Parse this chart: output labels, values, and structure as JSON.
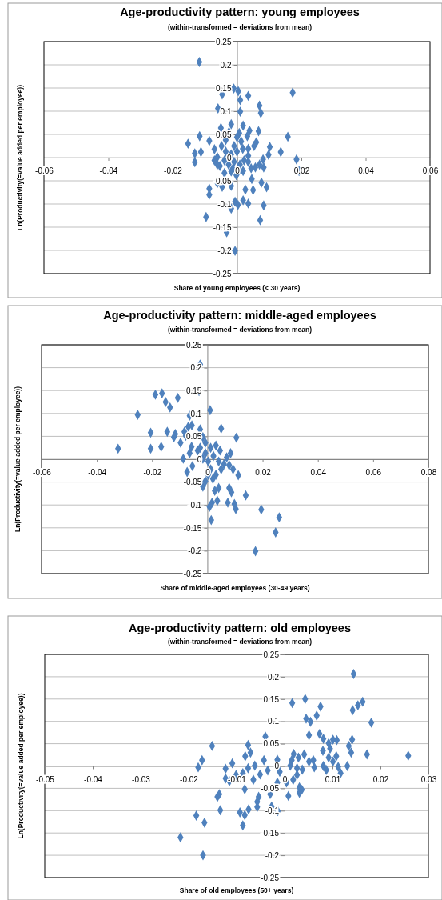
{
  "chart_data": [
    {
      "type": "scatter",
      "title": "Age-productivity pattern: young employees",
      "subtitle": "(within-transformed  = deviations from mean)",
      "xlabel": "Share of young employees (< 30 years)",
      "ylabel": "Ln(Productivity(=value added per employee))",
      "xlim": [
        -0.06,
        0.06
      ],
      "xticks": [
        -0.06,
        -0.04,
        -0.02,
        0,
        0.02,
        0.04,
        0.06
      ],
      "ylim": [
        -0.25,
        0.25
      ],
      "yticks": [
        -0.25,
        -0.2,
        -0.15,
        -0.1,
        -0.05,
        0,
        0.05,
        0.1,
        0.15,
        0.2,
        0.25
      ],
      "grid": "y",
      "marker": "diamond",
      "series": [
        {
          "color": "#4f81bd",
          "x": [
            -0.0117,
            -0.001,
            0.0004,
            0.0035,
            -0.0046,
            0.001,
            0.0173,
            0.007,
            0.0074,
            -0.0059,
            0.001,
            -0.0018,
            0.0019,
            -0.005,
            0.0039,
            0.0067,
            0.0158,
            -0.0116,
            -0.0152,
            -0.0086,
            0.0032,
            0.0007,
            -0.0025,
            0.006,
            0.0102,
            0.0136,
            -0.0131,
            -0.0112,
            -0.0131,
            -0.007,
            -0.0048,
            0.0098,
            0.0081,
            0.0185,
            0.0193,
            0.007,
            0.0083,
            0.0044,
            0.0019,
            0.0046,
            0.0076,
            0.0092,
            0.005,
            0.0026,
            -0.0018,
            -0.0046,
            -0.0086,
            -0.0086,
            -0.0061,
            -0.0002,
            -0.0018,
            -0.0039,
            0.0083,
            0.0035,
            0.0019,
            0.0003,
            -0.0006,
            -0.0018,
            -0.0096,
            0.0072,
            -0.0032,
            -0.0006,
            -0.0061,
            -0.0039,
            -0.0026,
            -0.0009,
            0.0009,
            0.0022,
            0.0035,
            0.0018,
            0,
            -0.0018,
            -0.0035,
            -0.0053,
            -0.0061,
            0.0035,
            0.0053,
            -0.0009,
            0.0013,
            0,
            -0.0035,
            -0.0013,
            0.0004,
            0.0035,
            -0.007,
            0.0057
          ],
          "values": [
            0.206,
            0.149,
            0.143,
            0.133,
            0.136,
            0.124,
            0.14,
            0.112,
            0.096,
            0.106,
            0.099,
            0.072,
            0.069,
            0.064,
            0.058,
            0.057,
            0.045,
            0.046,
            0.03,
            0.036,
            0.046,
            0.053,
            0.055,
            0.033,
            0.023,
            0.012,
            0.009,
            0.012,
            -0.01,
            0.018,
            0.025,
            0.006,
            -0.004,
            -0.004,
            -0.029,
            -0.015,
            -0.021,
            -0.023,
            -0.029,
            -0.046,
            -0.054,
            -0.064,
            -0.07,
            -0.069,
            -0.061,
            -0.063,
            -0.067,
            -0.08,
            -0.055,
            -0.038,
            -0.03,
            -0.033,
            -0.103,
            -0.099,
            -0.092,
            -0.102,
            -0.095,
            -0.11,
            -0.128,
            -0.135,
            -0.161,
            -0.201,
            0.001,
            -0.006,
            -0.015,
            -0.009,
            -0.015,
            -0.006,
            0.004,
            0.019,
            0.013,
            0.007,
            0.013,
            -0.018,
            -0.015,
            0.019,
            0.025,
            0.025,
            0.035,
            0.044,
            0.038,
            -0.024,
            -0.03,
            -0.009,
            -0.006,
            -0.021
          ]
        }
      ]
    },
    {
      "type": "scatter",
      "title": "Age-productivity pattern: middle-aged employees",
      "subtitle": "(within-transformed  = deviations from mean)",
      "xlabel": "Share of middle-aged employees (30-49 years)",
      "ylabel": "Ln(Productivity(=value added per employee))",
      "xlim": [
        -0.06,
        0.08
      ],
      "xticks": [
        -0.06,
        -0.04,
        -0.02,
        0,
        0.02,
        0.04,
        0.06,
        0.08
      ],
      "ylim": [
        -0.25,
        0.25
      ],
      "yticks": [
        -0.25,
        -0.2,
        -0.15,
        -0.1,
        -0.05,
        0,
        0.05,
        0.1,
        0.15,
        0.2,
        0.25
      ],
      "grid": "y",
      "marker": "diamond",
      "series": [
        {
          "color": "#4f81bd",
          "x": [
            -0.0026,
            -0.003,
            -0.0188,
            -0.0164,
            -0.0151,
            -0.0135,
            -0.0107,
            0.001,
            -0.0252,
            -0.0064,
            -0.0069,
            -0.0056,
            -0.0026,
            0.005,
            -0.0205,
            -0.0145,
            -0.0121,
            -0.0116,
            -0.0083,
            -0.0078,
            0.0105,
            -0.0323,
            -0.0205,
            -0.0167,
            -0.0097,
            -0.0057,
            -0.0016,
            -0.0007,
            -0.0035,
            -0.0064,
            -0.0087,
            -0.0054,
            -0.0073,
            0.0084,
            0.0012,
            0.0031,
            0.0046,
            -0.0016,
            0.0003,
            0.0022,
            0.0041,
            0.006,
            0.0079,
            0.0093,
            0.0112,
            0.0012,
            0.0031,
            -0.0007,
            -0.0016,
            0.0027,
            0.0041,
            0.0079,
            0.0087,
            0.0139,
            0.0036,
            0.0017,
            0.0008,
            0.0074,
            0.0098,
            0.0103,
            0.0014,
            0.0195,
            0.026,
            0.0247,
            0.0174,
            -0.0007,
            -0.0026,
            0.005,
            0.007,
            0.0003,
            0.002
          ],
          "values": [
            0.207,
            0.149,
            0.141,
            0.144,
            0.125,
            0.113,
            0.134,
            0.107,
            0.097,
            0.095,
            0.071,
            0.074,
            0.065,
            0.067,
            0.058,
            0.06,
            0.048,
            0.055,
            0.06,
            0.051,
            0.047,
            0.023,
            0.023,
            0.027,
            0.036,
            0.027,
            0.048,
            0.036,
            0.019,
            0.013,
            0.001,
            -0.015,
            -0.028,
            0.013,
            0.025,
            0.03,
            0.019,
            0.001,
            -0.005,
            0.007,
            -0.005,
            -0.011,
            -0.013,
            -0.022,
            -0.035,
            -0.022,
            -0.034,
            -0.048,
            -0.06,
            -0.069,
            -0.063,
            -0.063,
            -0.072,
            -0.079,
            -0.091,
            -0.095,
            -0.104,
            -0.095,
            -0.098,
            -0.109,
            -0.133,
            -0.11,
            -0.127,
            -0.16,
            -0.201,
            0.013,
            0.025,
            -0.022,
            0.004,
            -0.034,
            -0.043
          ]
        }
      ]
    },
    {
      "type": "scatter",
      "title": "Age-productivity pattern: old employees",
      "subtitle": "(within-transformed  = deviations from mean)",
      "xlabel": "Share of old employees (50+ years)",
      "ylabel": "Ln(Productivity(=value added per employee))",
      "xlim": [
        -0.05,
        0.03
      ],
      "xticks": [
        -0.05,
        -0.04,
        -0.03,
        -0.02,
        -0.01,
        0,
        0.01,
        0.02,
        0.03
      ],
      "ylim": [
        -0.25,
        0.25
      ],
      "yticks": [
        -0.25,
        -0.2,
        -0.15,
        -0.1,
        -0.05,
        0,
        0.05,
        0.1,
        0.15,
        0.2,
        0.25
      ],
      "grid": "y",
      "marker": "diamond",
      "series": [
        {
          "color": "#4f81bd",
          "x": [
            0.0144,
            0.0043,
            0.0016,
            0.0075,
            0.0163,
            0.0153,
            0.0142,
            0.0067,
            0.0045,
            0.0054,
            0.0181,
            0.0051,
            0.0073,
            0.0081,
            0.0092,
            0.0101,
            0.0109,
            0.0141,
            0.0134,
            0.0139,
            0.0172,
            0.0258,
            -0.004,
            -0.0076,
            -0.0151,
            -0.0172,
            -0.018,
            -0.0071,
            -0.0082,
            -0.0109,
            -0.0123,
            -0.0123,
            -0.0115,
            -0.0101,
            -0.0087,
            -0.0076,
            -0.0062,
            -0.0043,
            -0.0035,
            -0.0051,
            -0.0065,
            -0.0015,
            -0.001,
            -0.0015,
            0.0004,
            0.0019,
            0.0015,
            0.0029,
            0.0041,
            0.0012,
            0.0026,
            0.0037,
            0.0026,
            0.0018,
            0.0031,
            0.0036,
            0.0031,
            0.0008,
            0.0051,
            0.006,
            0.0062,
            0.0081,
            0.0087,
            0.0092,
            0.0101,
            0.0108,
            0.0112,
            0.0117,
            0.0131,
            0.008,
            0.0095,
            -0.0083,
            -0.0054,
            -0.0057,
            -0.0057,
            -0.003,
            -0.0027,
            -0.0014,
            -0.0075,
            -0.0093,
            -0.0083,
            -0.0087,
            -0.0134,
            -0.014,
            -0.0136,
            -0.0184,
            -0.0167,
            -0.0217,
            -0.017
          ],
          "values": [
            0.206,
            0.15,
            0.141,
            0.133,
            0.144,
            0.136,
            0.125,
            0.113,
            0.106,
            0.099,
            0.097,
            0.069,
            0.072,
            0.061,
            0.051,
            0.059,
            0.058,
            0.059,
            0.045,
            0.03,
            0.026,
            0.023,
            0.066,
            0.047,
            0.045,
            0.013,
            -0.003,
            0.03,
            0.022,
            0.006,
            -0.006,
            -0.028,
            -0.034,
            -0.02,
            -0.016,
            -0.005,
            0.001,
            0.013,
            -0.01,
            -0.019,
            -0.031,
            0.014,
            -0.013,
            -0.037,
            -0.037,
            0.027,
            0.013,
            0.019,
            0.026,
            0.001,
            -0.005,
            -0.008,
            -0.02,
            -0.031,
            -0.048,
            -0.053,
            -0.06,
            -0.067,
            0.01,
            0.013,
            -0.003,
            0,
            -0.009,
            0.019,
            0.01,
            0.022,
            -0.002,
            -0.016,
            0,
            0.034,
            0.039,
            -0.052,
            -0.069,
            -0.08,
            -0.092,
            -0.063,
            -0.091,
            -0.101,
            -0.097,
            -0.104,
            -0.11,
            -0.133,
            -0.099,
            -0.069,
            -0.063,
            -0.111,
            -0.127,
            -0.16,
            -0.2
          ]
        }
      ]
    }
  ]
}
